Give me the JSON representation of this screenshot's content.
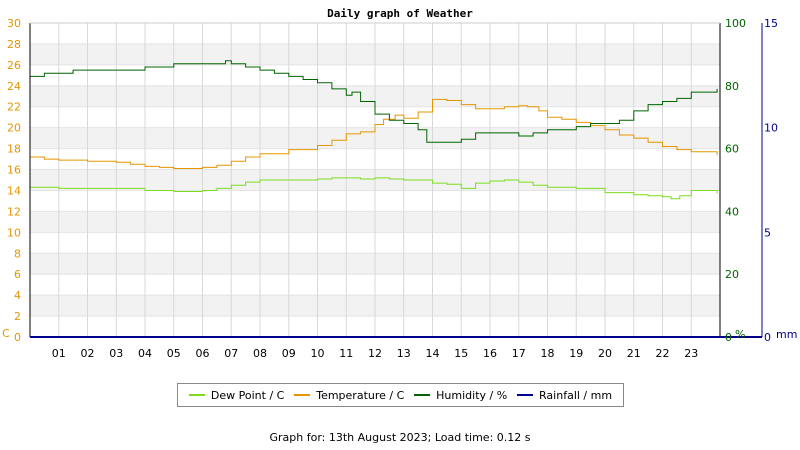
{
  "chart_data": {
    "type": "line",
    "title": "Daily graph of Weather",
    "x_ticks": [
      "01",
      "02",
      "03",
      "04",
      "05",
      "06",
      "07",
      "08",
      "09",
      "10",
      "11",
      "12",
      "13",
      "14",
      "15",
      "16",
      "17",
      "18",
      "19",
      "20",
      "21",
      "22",
      "23"
    ],
    "x_range_hours": [
      0,
      24
    ],
    "axes": {
      "left": {
        "unit": "C",
        "range": [
          0,
          30
        ],
        "ticks": [
          0,
          2,
          4,
          6,
          8,
          10,
          12,
          14,
          16,
          18,
          20,
          22,
          24,
          26,
          28,
          30
        ],
        "color": "#e69500"
      },
      "right1": {
        "unit": "%",
        "range": [
          0,
          100
        ],
        "ticks": [
          0,
          20,
          40,
          60,
          80,
          100
        ],
        "color": "#006400"
      },
      "right2": {
        "unit": "mm",
        "range": [
          0,
          15
        ],
        "ticks": [
          0,
          5,
          10,
          15
        ],
        "color": "#00008b"
      }
    },
    "series": [
      {
        "name": "Dew Point / C",
        "axis": "left",
        "color": "#7cdd1c",
        "x": [
          0,
          1,
          2,
          3,
          4,
          5,
          6,
          6.5,
          7,
          7.5,
          8,
          9,
          10,
          10.5,
          11,
          11.5,
          12,
          12.5,
          13,
          13.5,
          14,
          14.5,
          15,
          15.5,
          16,
          16.5,
          17,
          17.5,
          18,
          19,
          20,
          21,
          21.5,
          22,
          22.3,
          22.6,
          23,
          23.9
        ],
        "y": [
          14.3,
          14.2,
          14.2,
          14.2,
          14.0,
          13.9,
          14.0,
          14.2,
          14.5,
          14.8,
          15.0,
          15.0,
          15.1,
          15.2,
          15.2,
          15.1,
          15.2,
          15.1,
          15.0,
          15.0,
          14.7,
          14.6,
          14.2,
          14.7,
          14.9,
          15.0,
          14.8,
          14.5,
          14.3,
          14.2,
          13.8,
          13.6,
          13.5,
          13.4,
          13.2,
          13.5,
          14.0,
          13.7
        ]
      },
      {
        "name": "Temperature / C",
        "axis": "left",
        "color": "#e69500",
        "x": [
          0,
          0.5,
          1,
          2,
          3,
          3.5,
          4,
          4.5,
          5,
          5.5,
          6,
          6.5,
          7,
          7.5,
          8,
          9,
          10,
          10.5,
          11,
          11.5,
          12,
          12.3,
          12.7,
          13,
          13.5,
          14,
          14.5,
          15,
          15.5,
          16,
          16.5,
          17,
          17.3,
          17.7,
          18,
          18.5,
          19,
          19.5,
          20,
          20.5,
          21,
          21.5,
          22,
          22.5,
          23,
          23.9
        ],
        "y": [
          17.2,
          17.0,
          16.9,
          16.8,
          16.7,
          16.5,
          16.3,
          16.2,
          16.1,
          16.1,
          16.2,
          16.4,
          16.8,
          17.2,
          17.5,
          17.9,
          18.3,
          18.8,
          19.4,
          19.6,
          20.3,
          20.8,
          21.2,
          20.9,
          21.5,
          22.7,
          22.6,
          22.2,
          21.8,
          21.8,
          22.0,
          22.1,
          22.0,
          21.6,
          21.0,
          20.8,
          20.5,
          20.2,
          19.8,
          19.3,
          19.0,
          18.6,
          18.2,
          17.9,
          17.7,
          17.4
        ]
      },
      {
        "name": "Humidity / %",
        "axis": "right1",
        "color": "#006400",
        "x": [
          0,
          0.5,
          1,
          1.5,
          2,
          3,
          3.5,
          4,
          5,
          6,
          6.5,
          6.8,
          7,
          7.5,
          8,
          8.5,
          9,
          9.5,
          10,
          10.5,
          11,
          11.2,
          11.5,
          12,
          12.5,
          13,
          13.5,
          13.8,
          14,
          14.5,
          15,
          15.5,
          16,
          16.5,
          17,
          17.5,
          18,
          18.5,
          19,
          19.5,
          20,
          20.5,
          21,
          21.5,
          22,
          22.5,
          23,
          23.9
        ],
        "y": [
          83,
          84,
          84,
          85,
          85,
          85,
          85,
          86,
          87,
          87,
          87,
          88,
          87,
          86,
          85,
          84,
          83,
          82,
          81,
          79,
          77,
          78,
          75,
          71,
          69,
          68,
          66,
          62,
          62,
          62,
          63,
          65,
          65,
          65,
          64,
          65,
          66,
          66,
          67,
          68,
          68,
          69,
          72,
          74,
          75,
          76,
          78,
          79
        ]
      },
      {
        "name": "Rainfall / mm",
        "axis": "right2",
        "color": "#00008b",
        "x": [
          0,
          23.9
        ],
        "y": [
          0,
          0
        ]
      }
    ]
  },
  "footer": "Graph for: 13th August 2023; Load time: 0.12 s"
}
